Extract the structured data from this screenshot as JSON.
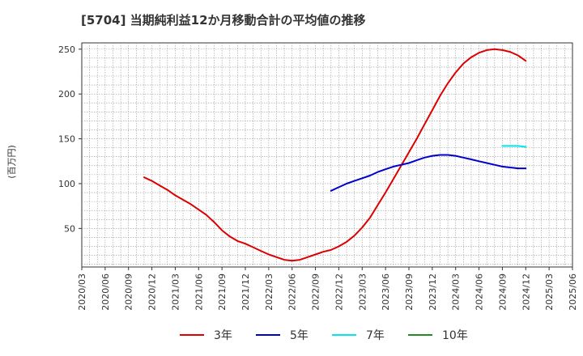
{
  "chart_data": {
    "type": "line",
    "title": "[5704]  当期純利益12か月移動合計の平均値の推移",
    "ylabel": "(百万円)",
    "xlabel": "",
    "ylim": [
      7,
      257
    ],
    "yticks": [
      50,
      100,
      150,
      200,
      250
    ],
    "grid": true,
    "legend_position": "bottom",
    "categories": [
      "2020/03",
      "2020/06",
      "2020/09",
      "2020/12",
      "2021/03",
      "2021/06",
      "2021/09",
      "2021/12",
      "2022/03",
      "2022/06",
      "2022/09",
      "2022/12",
      "2023/03",
      "2023/06",
      "2023/09",
      "2023/12",
      "2024/03",
      "2024/06",
      "2024/09",
      "2024/12",
      "2025/03",
      "2025/06"
    ],
    "series": [
      {
        "name": "3年",
        "color": "#dd0000",
        "points": [
          {
            "x": "2020/11",
            "y": 107
          },
          {
            "x": "2020/12",
            "y": 103
          },
          {
            "x": "2021/01",
            "y": 98
          },
          {
            "x": "2021/02",
            "y": 93
          },
          {
            "x": "2021/03",
            "y": 87
          },
          {
            "x": "2021/04",
            "y": 82
          },
          {
            "x": "2021/05",
            "y": 77
          },
          {
            "x": "2021/06",
            "y": 71
          },
          {
            "x": "2021/07",
            "y": 65
          },
          {
            "x": "2021/08",
            "y": 57
          },
          {
            "x": "2021/09",
            "y": 48
          },
          {
            "x": "2021/10",
            "y": 41
          },
          {
            "x": "2021/11",
            "y": 36
          },
          {
            "x": "2021/12",
            "y": 33
          },
          {
            "x": "2022/01",
            "y": 29
          },
          {
            "x": "2022/02",
            "y": 25
          },
          {
            "x": "2022/03",
            "y": 21
          },
          {
            "x": "2022/04",
            "y": 18
          },
          {
            "x": "2022/05",
            "y": 15
          },
          {
            "x": "2022/06",
            "y": 14
          },
          {
            "x": "2022/07",
            "y": 15
          },
          {
            "x": "2022/08",
            "y": 18
          },
          {
            "x": "2022/09",
            "y": 21
          },
          {
            "x": "2022/10",
            "y": 24
          },
          {
            "x": "2022/11",
            "y": 26
          },
          {
            "x": "2022/12",
            "y": 30
          },
          {
            "x": "2023/01",
            "y": 35
          },
          {
            "x": "2023/02",
            "y": 42
          },
          {
            "x": "2023/03",
            "y": 51
          },
          {
            "x": "2023/04",
            "y": 62
          },
          {
            "x": "2023/05",
            "y": 76
          },
          {
            "x": "2023/06",
            "y": 90
          },
          {
            "x": "2023/07",
            "y": 105
          },
          {
            "x": "2023/08",
            "y": 120
          },
          {
            "x": "2023/09",
            "y": 135
          },
          {
            "x": "2023/10",
            "y": 150
          },
          {
            "x": "2023/11",
            "y": 166
          },
          {
            "x": "2023/12",
            "y": 182
          },
          {
            "x": "2024/01",
            "y": 198
          },
          {
            "x": "2024/02",
            "y": 212
          },
          {
            "x": "2024/03",
            "y": 224
          },
          {
            "x": "2024/04",
            "y": 234
          },
          {
            "x": "2024/05",
            "y": 241
          },
          {
            "x": "2024/06",
            "y": 246
          },
          {
            "x": "2024/07",
            "y": 249
          },
          {
            "x": "2024/08",
            "y": 250
          },
          {
            "x": "2024/09",
            "y": 249
          },
          {
            "x": "2024/10",
            "y": 247
          },
          {
            "x": "2024/11",
            "y": 243
          },
          {
            "x": "2024/12",
            "y": 237
          }
        ]
      },
      {
        "name": "5年",
        "color": "#0000cc",
        "points": [
          {
            "x": "2022/11",
            "y": 92
          },
          {
            "x": "2022/12",
            "y": 96
          },
          {
            "x": "2023/01",
            "y": 100
          },
          {
            "x": "2023/02",
            "y": 103
          },
          {
            "x": "2023/03",
            "y": 106
          },
          {
            "x": "2023/04",
            "y": 109
          },
          {
            "x": "2023/05",
            "y": 113
          },
          {
            "x": "2023/06",
            "y": 116
          },
          {
            "x": "2023/07",
            "y": 119
          },
          {
            "x": "2023/08",
            "y": 121
          },
          {
            "x": "2023/09",
            "y": 123
          },
          {
            "x": "2023/10",
            "y": 126
          },
          {
            "x": "2023/11",
            "y": 129
          },
          {
            "x": "2023/12",
            "y": 131
          },
          {
            "x": "2024/01",
            "y": 132
          },
          {
            "x": "2024/02",
            "y": 132
          },
          {
            "x": "2024/03",
            "y": 131
          },
          {
            "x": "2024/04",
            "y": 129
          },
          {
            "x": "2024/05",
            "y": 127
          },
          {
            "x": "2024/06",
            "y": 125
          },
          {
            "x": "2024/07",
            "y": 123
          },
          {
            "x": "2024/08",
            "y": 121
          },
          {
            "x": "2024/09",
            "y": 119
          },
          {
            "x": "2024/10",
            "y": 118
          },
          {
            "x": "2024/11",
            "y": 117
          },
          {
            "x": "2024/12",
            "y": 117
          }
        ]
      },
      {
        "name": "7年",
        "color": "#00e5ee",
        "points": [
          {
            "x": "2024/09",
            "y": 142
          },
          {
            "x": "2024/10",
            "y": 142
          },
          {
            "x": "2024/11",
            "y": 142
          },
          {
            "x": "2024/12",
            "y": 141
          }
        ]
      },
      {
        "name": "10年",
        "color": "#228b22",
        "points": []
      }
    ]
  }
}
